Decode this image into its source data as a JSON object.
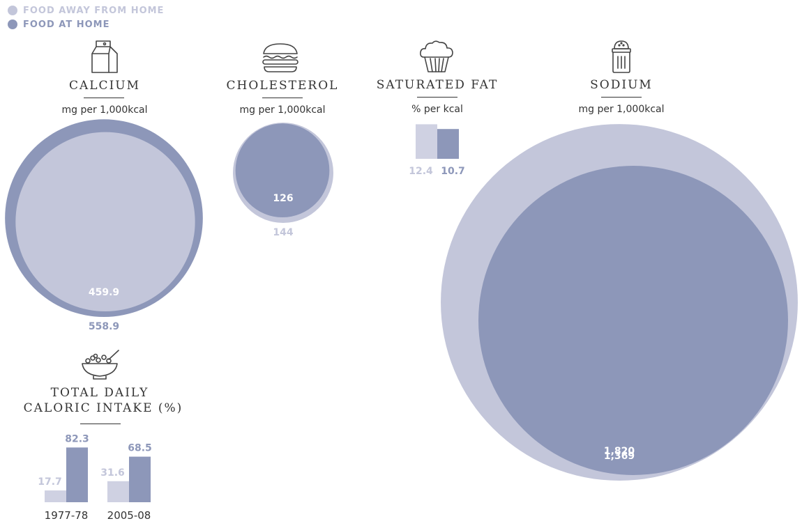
{
  "colors": {
    "away": "#c3c6da",
    "home": "#8d97b9",
    "text": "#333333"
  },
  "legend": [
    {
      "label": "FOOD AWAY FROM HOME",
      "series": "away"
    },
    {
      "label": "FOOD AT HOME",
      "series": "home"
    }
  ],
  "panels": {
    "calcium": {
      "title": "CALCIUM",
      "unit": "mg per 1,000kcal",
      "icon": "milk-carton-icon"
    },
    "cholesterol": {
      "title": "CHOLESTEROL",
      "unit": "mg per 1,000kcal",
      "icon": "burger-icon"
    },
    "saturated_fat": {
      "title": "SATURATED FAT",
      "unit": "% per kcal",
      "icon": "cupcake-icon"
    },
    "sodium": {
      "title": "SODIUM",
      "unit": "mg per 1,000kcal",
      "icon": "salt-shaker-icon"
    },
    "caloric": {
      "title_line1": "TOTAL DAILY",
      "title_line2": "CALORIC INTAKE (%)",
      "icon": "cereal-bowl-icon"
    }
  },
  "chart_data": [
    {
      "type": "bubble",
      "title": "CALCIUM",
      "unit": "mg per 1,000kcal",
      "series": [
        {
          "name": "FOOD AWAY FROM HOME",
          "value": 459.9,
          "label": "459.9"
        },
        {
          "name": "FOOD AT HOME",
          "value": 558.9,
          "label": "558.9"
        }
      ]
    },
    {
      "type": "bubble",
      "title": "CHOLESTEROL",
      "unit": "mg per 1,000kcal",
      "series": [
        {
          "name": "FOOD AWAY FROM HOME",
          "value": 144,
          "label": "144"
        },
        {
          "name": "FOOD AT HOME",
          "value": 126,
          "label": "126"
        }
      ]
    },
    {
      "type": "bar",
      "title": "SATURATED FAT",
      "unit": "% per kcal",
      "series": [
        {
          "name": "FOOD AWAY FROM HOME",
          "value": 12.4,
          "label": "12.4"
        },
        {
          "name": "FOOD AT HOME",
          "value": 10.7,
          "label": "10.7"
        }
      ]
    },
    {
      "type": "bubble",
      "title": "SODIUM",
      "unit": "mg per 1,000kcal",
      "series": [
        {
          "name": "FOOD AWAY FROM HOME",
          "value": 1820,
          "label": "1,820"
        },
        {
          "name": "FOOD AT HOME",
          "value": 1369,
          "label": "1,369"
        }
      ]
    },
    {
      "type": "bar",
      "title": "TOTAL DAILY CALORIC INTAKE (%)",
      "categories": [
        "1977-78",
        "2005-08"
      ],
      "series": [
        {
          "name": "FOOD AWAY FROM HOME",
          "values": [
            17.7,
            31.6
          ],
          "labels": [
            "17.7",
            "31.6"
          ]
        },
        {
          "name": "FOOD AT HOME",
          "values": [
            82.3,
            68.5
          ],
          "labels": [
            "82.3",
            "68.5"
          ]
        }
      ]
    }
  ]
}
